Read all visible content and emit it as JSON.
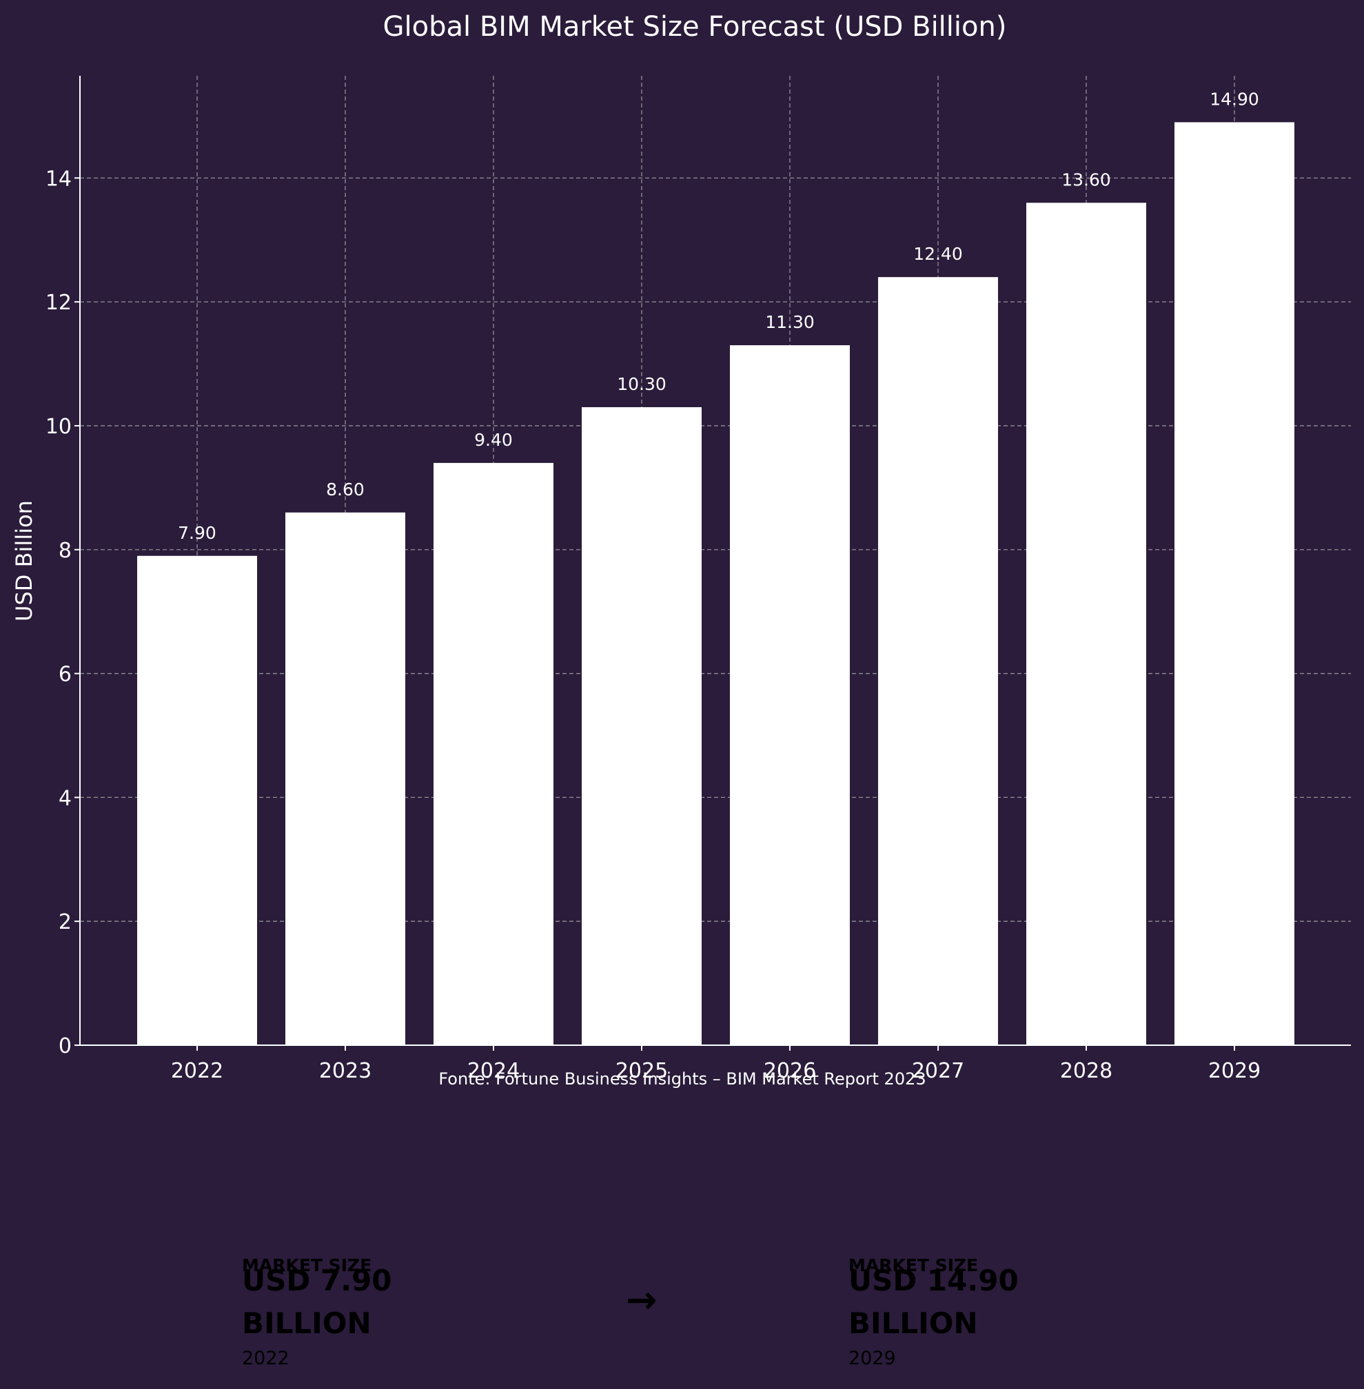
{
  "chart_data": {
    "type": "bar",
    "title": "Global BIM Market Size Forecast (USD Billion)",
    "xlabel": "",
    "ylabel": "USD Billion",
    "categories": [
      "2022",
      "2023",
      "2024",
      "2025",
      "2026",
      "2027",
      "2028",
      "2029"
    ],
    "values": [
      7.9,
      8.6,
      9.4,
      10.3,
      11.3,
      12.4,
      13.6,
      14.9
    ],
    "value_labels": [
      "7.90",
      "8.60",
      "9.40",
      "10.30",
      "11.30",
      "12.40",
      "13.60",
      "14.90"
    ],
    "ylim": [
      0,
      15.65
    ],
    "yticks": [
      0,
      2,
      4,
      6,
      8,
      10,
      12,
      14
    ],
    "grid": true,
    "bar_color": "#ffffff",
    "background_color": "#2a1c3a",
    "source": "Fonte: Fortune Business Insights – BIM Market Report 2023"
  },
  "kpis": {
    "start": {
      "heading": "MARKET SIZE",
      "value": "USD 7.90 BILLION",
      "year": "2022"
    },
    "arrow": "→",
    "end": {
      "heading": "MARKET SIZE",
      "value": "USD 14.90 BILLION",
      "year": "2029"
    }
  }
}
